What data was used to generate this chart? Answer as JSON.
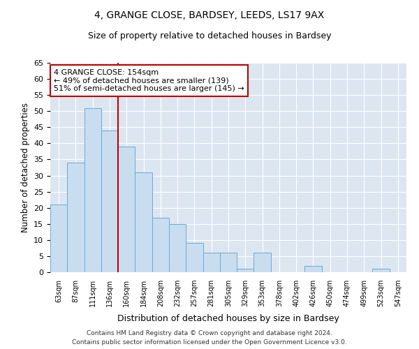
{
  "title": "4, GRANGE CLOSE, BARDSEY, LEEDS, LS17 9AX",
  "subtitle": "Size of property relative to detached houses in Bardsey",
  "xlabel": "Distribution of detached houses by size in Bardsey",
  "ylabel": "Number of detached properties",
  "categories": [
    "63sqm",
    "87sqm",
    "111sqm",
    "136sqm",
    "160sqm",
    "184sqm",
    "208sqm",
    "232sqm",
    "257sqm",
    "281sqm",
    "305sqm",
    "329sqm",
    "353sqm",
    "378sqm",
    "402sqm",
    "426sqm",
    "450sqm",
    "474sqm",
    "499sqm",
    "523sqm",
    "547sqm"
  ],
  "values": [
    21,
    34,
    51,
    44,
    39,
    31,
    17,
    15,
    9,
    6,
    6,
    1,
    6,
    0,
    0,
    2,
    0,
    0,
    0,
    1,
    0
  ],
  "bar_color": "#c9ddf0",
  "bar_edge_color": "#6aaad4",
  "vline_x_index": 3,
  "vline_color": "#c00000",
  "annotation_line1": "4 GRANGE CLOSE: 154sqm",
  "annotation_line2": "← 49% of detached houses are smaller (139)",
  "annotation_line3": "51% of semi-detached houses are larger (145) →",
  "annotation_box_color": "#ffffff",
  "annotation_box_edge_color": "#c00000",
  "ylim": [
    0,
    65
  ],
  "yticks": [
    0,
    5,
    10,
    15,
    20,
    25,
    30,
    35,
    40,
    45,
    50,
    55,
    60,
    65
  ],
  "background_color": "#ffffff",
  "plot_bg_color": "#dce6f1",
  "grid_color": "#ffffff",
  "footer_line1": "Contains HM Land Registry data © Crown copyright and database right 2024.",
  "footer_line2": "Contains public sector information licensed under the Open Government Licence v3.0."
}
